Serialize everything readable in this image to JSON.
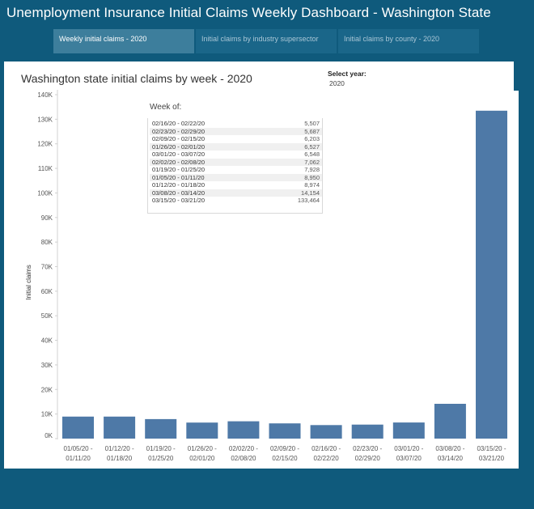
{
  "app": {
    "title": "Unemployment Insurance Initial Claims Weekly Dashboard  - Washington State"
  },
  "tabs": [
    {
      "label": "Weekly initial claims - 2020",
      "active": true
    },
    {
      "label": "Initial claims by industry supersector",
      "active": false
    },
    {
      "label": "Initial claims by county - 2020",
      "active": false
    }
  ],
  "filter": {
    "label": "Select year:",
    "value": "2020"
  },
  "tooltip": {
    "title": "Week of:",
    "rows": [
      {
        "week": "02/16/20 - 02/22/20",
        "value": "5,507"
      },
      {
        "week": "02/23/20 - 02/29/20",
        "value": "5,687"
      },
      {
        "week": "02/09/20 - 02/15/20",
        "value": "6,203"
      },
      {
        "week": "01/26/20 - 02/01/20",
        "value": "6,527"
      },
      {
        "week": "03/01/20 - 03/07/20",
        "value": "6,548"
      },
      {
        "week": "02/02/20 - 02/08/20",
        "value": "7,062"
      },
      {
        "week": "01/19/20 - 01/25/20",
        "value": "7,928"
      },
      {
        "week": "01/05/20 - 01/11/20",
        "value": "8,950"
      },
      {
        "week": "01/12/20 - 01/18/20",
        "value": "8,974"
      },
      {
        "week": "03/08/20 - 03/14/20",
        "value": "14,154"
      },
      {
        "week": "03/15/20 - 03/21/20",
        "value": "133,464"
      }
    ]
  },
  "colors": {
    "background": "#0f5a7c",
    "bar": "#4e79a7"
  },
  "chart_data": {
    "type": "bar",
    "title": "Washington state initial claims by week - 2020",
    "xlabel": "",
    "ylabel": "Initial claims",
    "categories": [
      [
        "01/05/20 -",
        "01/11/20"
      ],
      [
        "01/12/20 -",
        "01/18/20"
      ],
      [
        "01/19/20 -",
        "01/25/20"
      ],
      [
        "01/26/20 -",
        "02/01/20"
      ],
      [
        "02/02/20 -",
        "02/08/20"
      ],
      [
        "02/09/20 -",
        "02/15/20"
      ],
      [
        "02/16/20 -",
        "02/22/20"
      ],
      [
        "02/23/20 -",
        "02/29/20"
      ],
      [
        "03/01/20 -",
        "03/07/20"
      ],
      [
        "03/08/20 -",
        "03/14/20"
      ],
      [
        "03/15/20 -",
        "03/21/20"
      ]
    ],
    "values": [
      8950,
      8974,
      7928,
      6527,
      7062,
      6203,
      5507,
      5687,
      6548,
      14154,
      133464
    ],
    "ylim": [
      0,
      140000
    ],
    "yticks": [
      {
        "value": 0,
        "label": "0K"
      },
      {
        "value": 10000,
        "label": "10K"
      },
      {
        "value": 20000,
        "label": "20K"
      },
      {
        "value": 30000,
        "label": "30K"
      },
      {
        "value": 40000,
        "label": "40K"
      },
      {
        "value": 50000,
        "label": "50K"
      },
      {
        "value": 60000,
        "label": "60K"
      },
      {
        "value": 70000,
        "label": "70K"
      },
      {
        "value": 80000,
        "label": "80K"
      },
      {
        "value": 90000,
        "label": "90K"
      },
      {
        "value": 100000,
        "label": "100K"
      },
      {
        "value": 110000,
        "label": "110K"
      },
      {
        "value": 120000,
        "label": "120K"
      },
      {
        "value": 130000,
        "label": "130K"
      },
      {
        "value": 140000,
        "label": "140K"
      }
    ],
    "grid": false,
    "legend": "none"
  }
}
